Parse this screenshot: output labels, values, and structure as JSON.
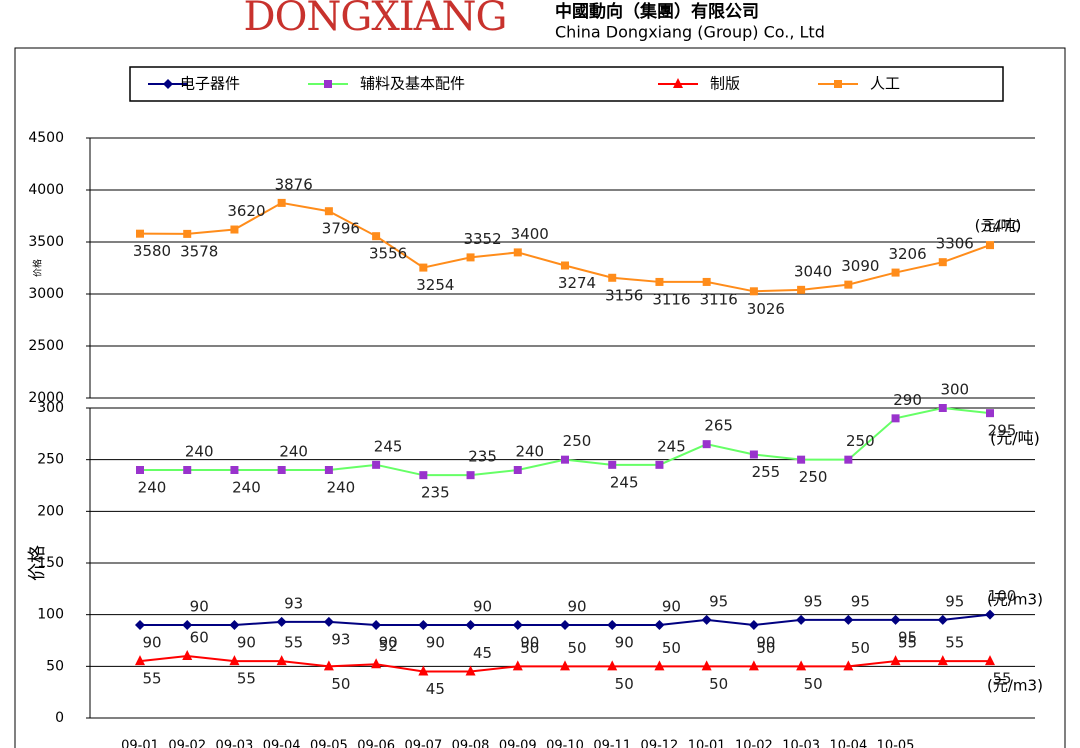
{
  "header": {
    "logo": "DONGXIANG",
    "company_cn": "中國動向（集團）有限公司",
    "company_en": "China Dongxiang (Group) Co., Ltd"
  },
  "chart_data": [
    {
      "type": "line",
      "y_label": "价格",
      "ylim": [
        2000,
        4500
      ],
      "yticks": [
        2000,
        2500,
        3000,
        3500,
        4000,
        4500
      ],
      "grid": true,
      "annotations": [
        "(元/吨)"
      ],
      "series": [
        {
          "name": "人工",
          "color": "#ff8c1a",
          "marker": "square",
          "marker_color": "#ff8c1a",
          "values": [
            3580,
            3578,
            3620,
            3876,
            3796,
            3556,
            3254,
            3352,
            3400,
            3274,
            3156,
            3116,
            3116,
            3026,
            3040,
            3090,
            3206,
            3306,
            3470
          ]
        }
      ]
    },
    {
      "type": "line",
      "y_label": "价格",
      "ylim": [
        0,
        300
      ],
      "yticks": [
        0,
        50,
        100,
        150,
        200,
        250,
        300
      ],
      "grid": true,
      "annotations": [
        "(元/吨)",
        "(元/m3)",
        "(元/m3)"
      ],
      "categories": [
        "09-01",
        "09-02",
        "09-03",
        "09-04",
        "09-05",
        "09-06",
        "09-07",
        "09-08",
        "09-09",
        "09-10",
        "09-11",
        "09-12",
        "10-01",
        "10-02",
        "10-03",
        "10-04",
        "10-05",
        null,
        null
      ],
      "series": [
        {
          "name": "电子器件",
          "color": "#000080",
          "marker": "diamond",
          "marker_color": "#000080",
          "values": [
            90,
            90,
            90,
            93,
            93,
            90,
            90,
            90,
            90,
            90,
            90,
            90,
            95,
            90,
            95,
            95,
            95,
            95,
            100
          ]
        },
        {
          "name": "辅料及基本配件",
          "color": "#66ff66",
          "marker": "square",
          "marker_color": "#9933cc",
          "values": [
            240,
            240,
            240,
            240,
            240,
            245,
            235,
            235,
            240,
            250,
            245,
            245,
            265,
            255,
            250,
            250,
            290,
            300,
            295
          ]
        },
        {
          "name": "制版",
          "color": "#ff0000",
          "marker": "triangle",
          "marker_color": "#ff0000",
          "values": [
            55,
            60,
            55,
            55,
            50,
            52,
            45,
            45,
            50,
            50,
            50,
            50,
            50,
            50,
            50,
            50,
            55,
            55,
            55
          ]
        }
      ]
    }
  ]
}
